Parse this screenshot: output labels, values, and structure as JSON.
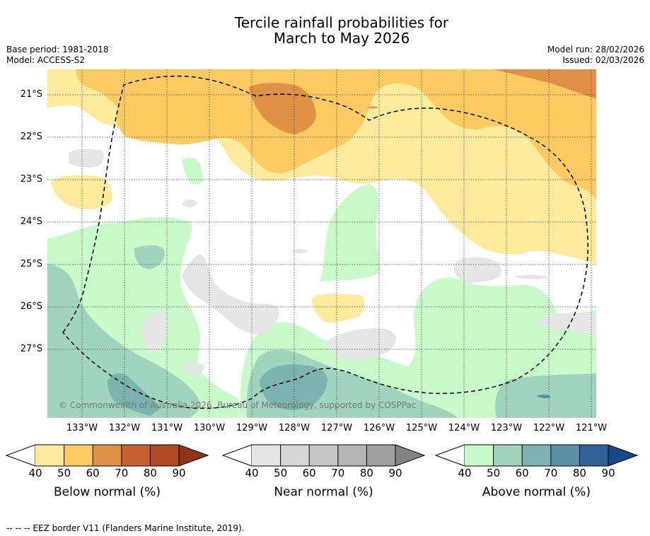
{
  "title": {
    "line1": "Tercile rainfall probabilities for",
    "line2": "March to May 2026"
  },
  "meta": {
    "base_period": "Base period: 1981-2018",
    "model": "Model: ACCESS-S2",
    "model_run": "Model run: 28/02/2026",
    "issued": "Issued: 02/03/2026"
  },
  "map": {
    "lat_labels": [
      "21°S",
      "22°S",
      "23°S",
      "24°S",
      "25°S",
      "26°S",
      "27°S"
    ],
    "lon_labels": [
      "133°W",
      "132°W",
      "131°W",
      "130°W",
      "129°W",
      "128°W",
      "127°W",
      "126°W",
      "125°W",
      "124°W",
      "123°W",
      "122°W",
      "121°W"
    ],
    "copyright": "© Commonwealth of Australia 2026, Bureau of Meteorology, supported by COSPPac"
  },
  "legend": {
    "tick_values": [
      "40",
      "50",
      "60",
      "70",
      "80",
      "90"
    ],
    "below": {
      "label": "Below normal (%)",
      "colors": [
        "#ffffff",
        "#feeb9e",
        "#fecb63",
        "#df9245",
        "#c96032",
        "#ae4a26",
        "#8c3517"
      ]
    },
    "near": {
      "label": "Near normal (%)",
      "colors": [
        "#ffffff",
        "#e6e6e6",
        "#d6d6d6",
        "#c6c6c6",
        "#b4b4b4",
        "#a0a0a0",
        "#838383"
      ]
    },
    "above": {
      "label": "Above normal (%)",
      "colors": [
        "#ffffff",
        "#c9fbca",
        "#a0d4bc",
        "#7cb3b0",
        "#5890a6",
        "#2f6397",
        "#1a4785"
      ]
    }
  },
  "footer": {
    "eez_note": "--  --  -- EEZ border V11 (Flanders Marine Institute, 2019)."
  }
}
